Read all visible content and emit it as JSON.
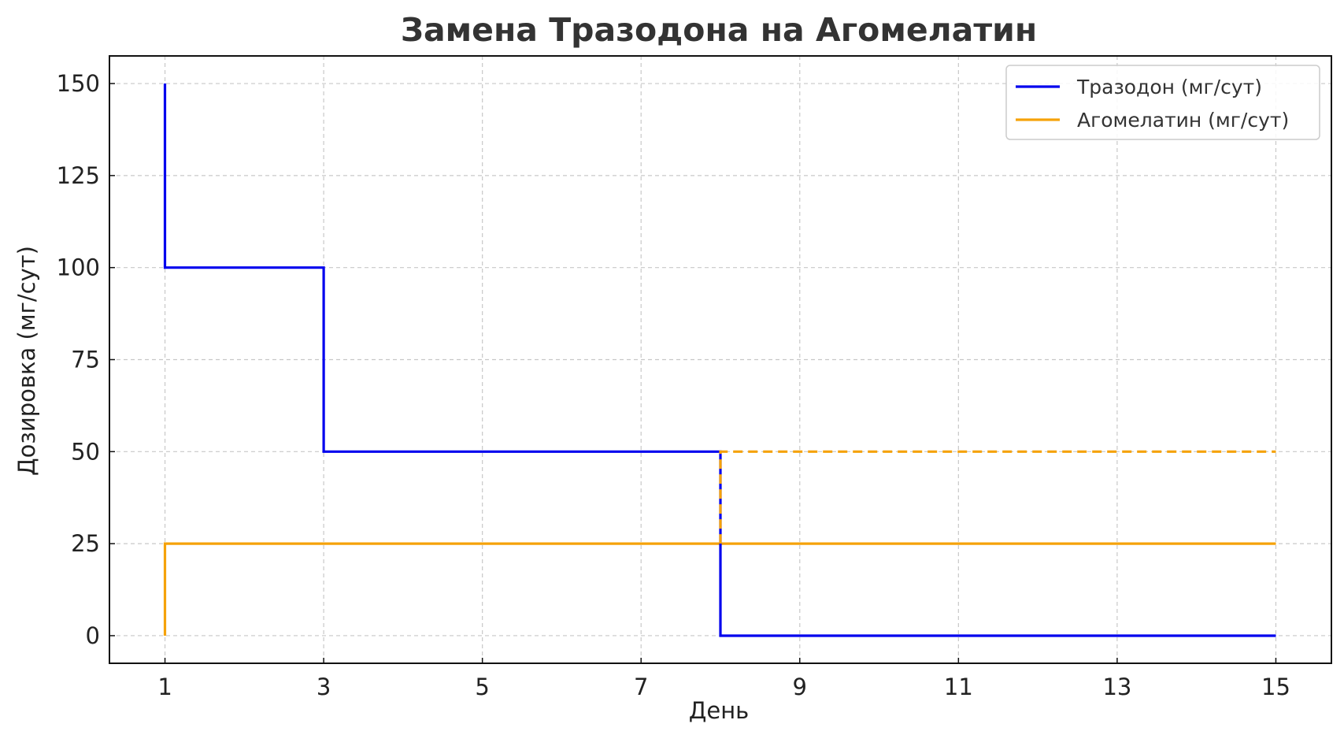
{
  "chart_data": {
    "type": "line",
    "title": "Замена Тразодона на Агомелатин",
    "xlabel": "День",
    "ylabel": "Дозировка (мг/сут)",
    "xlim": [
      0.3,
      15.7
    ],
    "ylim": [
      -7.5,
      157.5
    ],
    "xticks": [
      1,
      3,
      5,
      7,
      9,
      11,
      13,
      15
    ],
    "yticks": [
      0,
      25,
      50,
      75,
      100,
      125,
      150
    ],
    "grid": true,
    "legend_position": "top-right",
    "series": [
      {
        "name": "Тразодон (мг/сут)",
        "color": "#0000ee",
        "style": "solid",
        "step": "post",
        "points": [
          [
            1,
            150
          ],
          [
            1,
            100
          ],
          [
            3,
            100
          ],
          [
            3,
            50
          ],
          [
            8,
            50
          ],
          [
            8,
            0
          ],
          [
            15,
            0
          ]
        ]
      },
      {
        "name": "Агомелатин (мг/сут)",
        "color": "#f5a20a",
        "style": "solid",
        "step": "post",
        "points": [
          [
            1,
            0
          ],
          [
            1,
            25
          ],
          [
            15,
            25
          ]
        ]
      },
      {
        "color": "#f5a20a",
        "style": "dashed",
        "step": "post",
        "points": [
          [
            8,
            25
          ],
          [
            8,
            50
          ],
          [
            15,
            50
          ]
        ]
      }
    ]
  }
}
